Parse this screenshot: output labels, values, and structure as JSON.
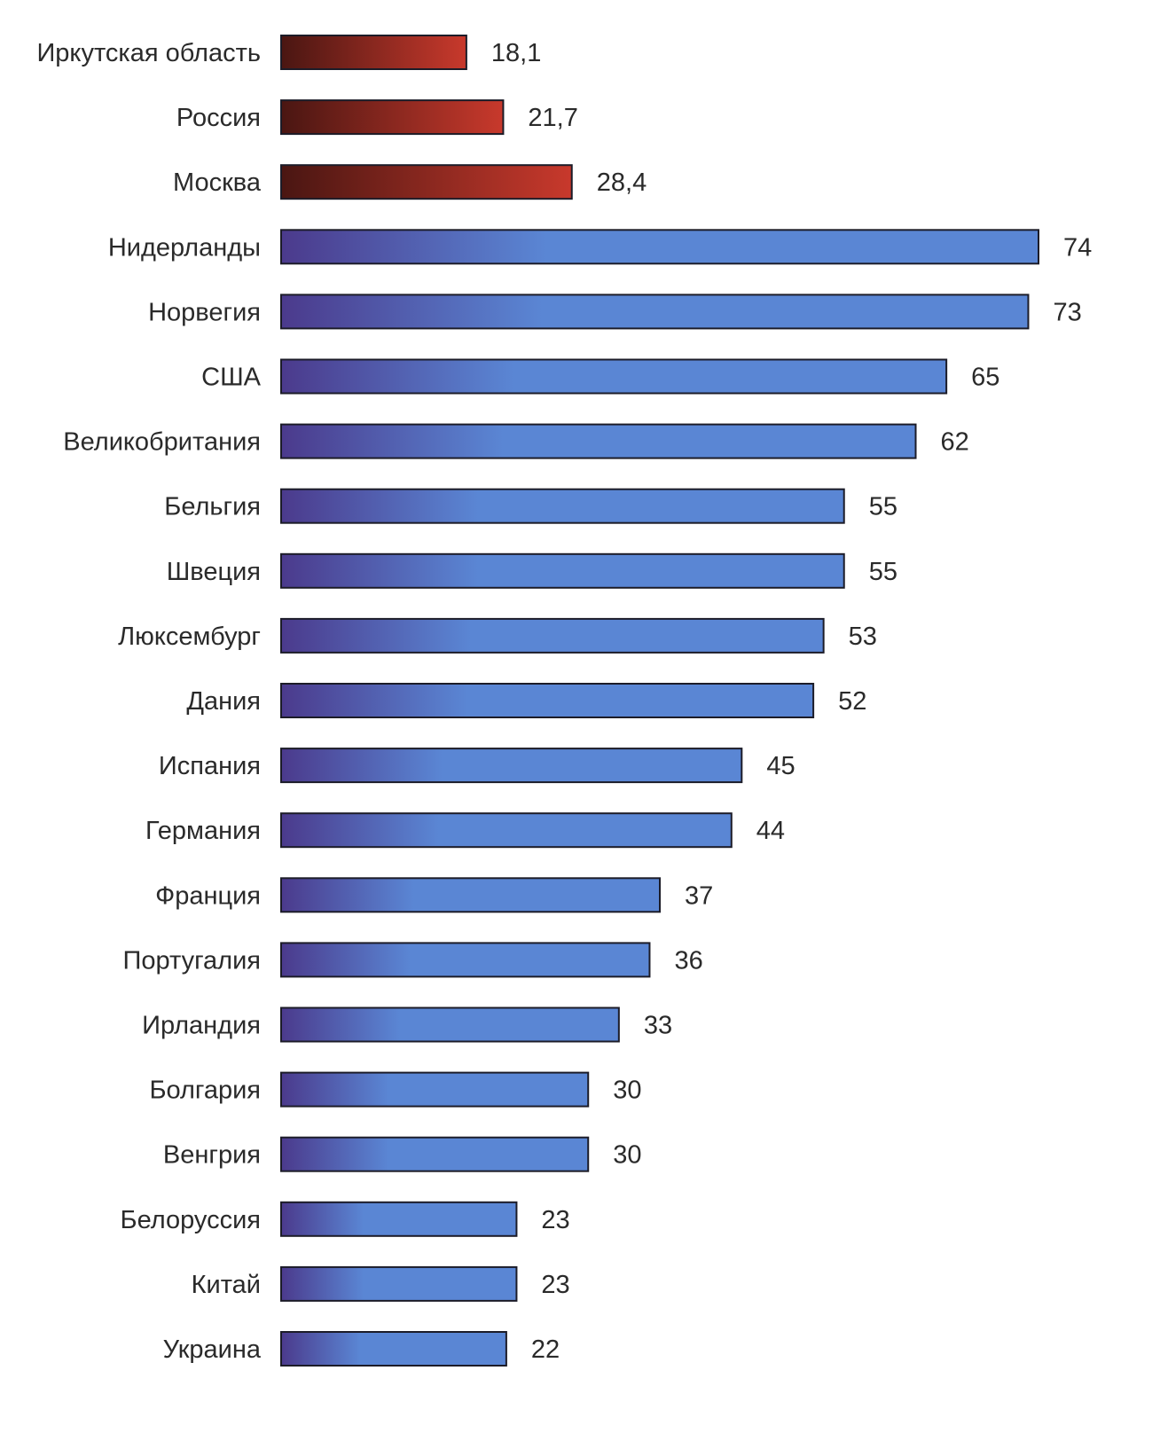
{
  "chart_data": {
    "type": "bar",
    "orientation": "horizontal",
    "categories": [
      "Иркутская область",
      "Россия",
      "Москва",
      "Нидерланды",
      "Норвегия",
      "США",
      "Великобритания",
      "Бельгия",
      "Швеция",
      "Люксембург",
      "Дания",
      "Испания",
      "Германия",
      "Франция",
      "Португалия",
      "Ирландия",
      "Болгария",
      "Венгрия",
      "Белоруссия",
      "Китай",
      "Украина"
    ],
    "values": [
      18.1,
      21.7,
      28.4,
      74,
      73,
      65,
      62,
      55,
      55,
      53,
      52,
      45,
      44,
      37,
      36,
      33,
      30,
      30,
      23,
      23,
      22
    ],
    "value_labels": [
      "18,1",
      "21,7",
      "28,4",
      "74",
      "73",
      "65",
      "62",
      "55",
      "55",
      "53",
      "52",
      "45",
      "44",
      "37",
      "36",
      "33",
      "30",
      "30",
      "23",
      "23",
      "22"
    ],
    "bar_groups": [
      "red",
      "red",
      "red",
      "blue",
      "blue",
      "blue",
      "blue",
      "blue",
      "blue",
      "blue",
      "blue",
      "blue",
      "blue",
      "blue",
      "blue",
      "blue",
      "blue",
      "blue",
      "blue",
      "blue",
      "blue"
    ],
    "colors": {
      "red_dark": "#4a1612",
      "red_light": "#c8392c",
      "blue_dark": "#4b3a8c",
      "blue_light": "#5a86d4",
      "outline": "#1c1c28"
    },
    "xlim": [
      0,
      74
    ],
    "grid": false,
    "legend": "none",
    "title": "",
    "xlabel": "",
    "ylabel": ""
  }
}
